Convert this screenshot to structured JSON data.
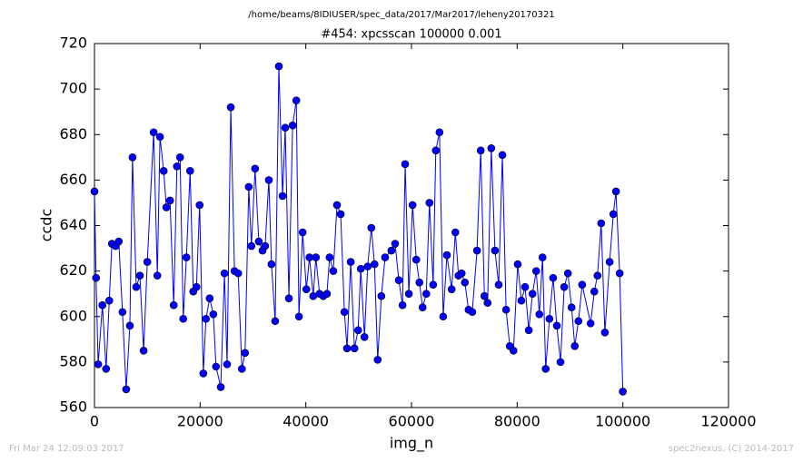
{
  "chart_data": {
    "type": "line",
    "suptitle": "/home/beams/8IDIUSER/spec_data/2017/Mar2017/leheny20170321",
    "title": "#454: xpcsscan 100000 0.001",
    "x_label": "img_n",
    "y_label": "ccdc",
    "footer_left": "Fri Mar 24 12:09:03 2017",
    "footer_right": "spec2nexus, (C) 2014-2017",
    "color": "#0000ff",
    "marker": "circle",
    "xlim": [
      0,
      120000
    ],
    "xticks": [
      0,
      20000,
      40000,
      60000,
      80000,
      100000,
      120000
    ],
    "ylim": [
      560,
      720
    ],
    "yticks": [
      560,
      580,
      600,
      620,
      640,
      660,
      680,
      700,
      720
    ],
    "x": [
      0,
      300,
      700,
      1500,
      2200,
      2800,
      3300,
      4000,
      4600,
      5300,
      6000,
      6700,
      7200,
      7900,
      8600,
      9300,
      10000,
      11200,
      11900,
      12400,
      13100,
      13600,
      14300,
      15000,
      15600,
      16200,
      16800,
      17400,
      18100,
      18700,
      19300,
      19900,
      20600,
      21100,
      21800,
      22500,
      23000,
      23900,
      24600,
      25100,
      25800,
      26500,
      27200,
      27900,
      28500,
      29200,
      29700,
      30400,
      31100,
      31800,
      32300,
      33000,
      33500,
      34200,
      34900,
      35600,
      36100,
      36800,
      37500,
      38200,
      38700,
      39400,
      40100,
      40700,
      41400,
      41900,
      42600,
      43300,
      44000,
      44500,
      45200,
      45900,
      46600,
      47300,
      47800,
      48500,
      49200,
      49900,
      50400,
      51100,
      51700,
      52400,
      53000,
      53600,
      54300,
      55000,
      56200,
      56900,
      57600,
      58300,
      58800,
      59500,
      60200,
      60900,
      61500,
      62100,
      62800,
      63400,
      64100,
      64600,
      65300,
      66000,
      66700,
      67600,
      68300,
      68900,
      69500,
      70100,
      70800,
      71500,
      72400,
      73100,
      73800,
      74400,
      75100,
      75800,
      76500,
      77200,
      77900,
      78600,
      79300,
      80100,
      80800,
      81500,
      82200,
      82900,
      83600,
      84200,
      84800,
      85400,
      86100,
      86800,
      87500,
      88200,
      88900,
      89600,
      90300,
      90900,
      91600,
      92300,
      93900,
      94600,
      95200,
      95900,
      96600,
      97500,
      98200,
      98700,
      99400,
      100000
    ],
    "values": [
      655,
      617,
      579,
      605,
      577,
      607,
      632,
      631,
      633,
      602,
      568,
      596,
      670,
      613,
      618,
      585,
      624,
      681,
      618,
      679,
      664,
      648,
      651,
      605,
      666,
      670,
      599,
      626,
      664,
      611,
      613,
      649,
      575,
      599,
      608,
      601,
      578,
      569,
      619,
      579,
      692,
      620,
      619,
      577,
      584,
      657,
      631,
      665,
      633,
      629,
      631,
      660,
      623,
      598,
      710,
      653,
      683,
      608,
      684,
      695,
      600,
      637,
      612,
      626,
      609,
      626,
      610,
      609,
      610,
      626,
      620,
      649,
      645,
      602,
      586,
      624,
      586,
      594,
      621,
      591,
      622,
      639,
      623,
      581,
      609,
      626,
      629,
      632,
      616,
      605,
      667,
      610,
      649,
      625,
      615,
      604,
      610,
      650,
      614,
      673,
      681,
      600,
      627,
      612,
      637,
      618,
      619,
      615,
      603,
      602,
      629,
      673,
      609,
      606,
      674,
      629,
      614,
      671,
      603,
      587,
      585,
      623,
      607,
      613,
      594,
      610,
      620,
      601,
      626,
      577,
      599,
      617,
      596,
      580,
      613,
      619,
      604,
      587,
      598,
      614,
      597,
      611,
      618,
      641,
      593,
      624,
      645,
      655,
      619,
      567
    ]
  }
}
